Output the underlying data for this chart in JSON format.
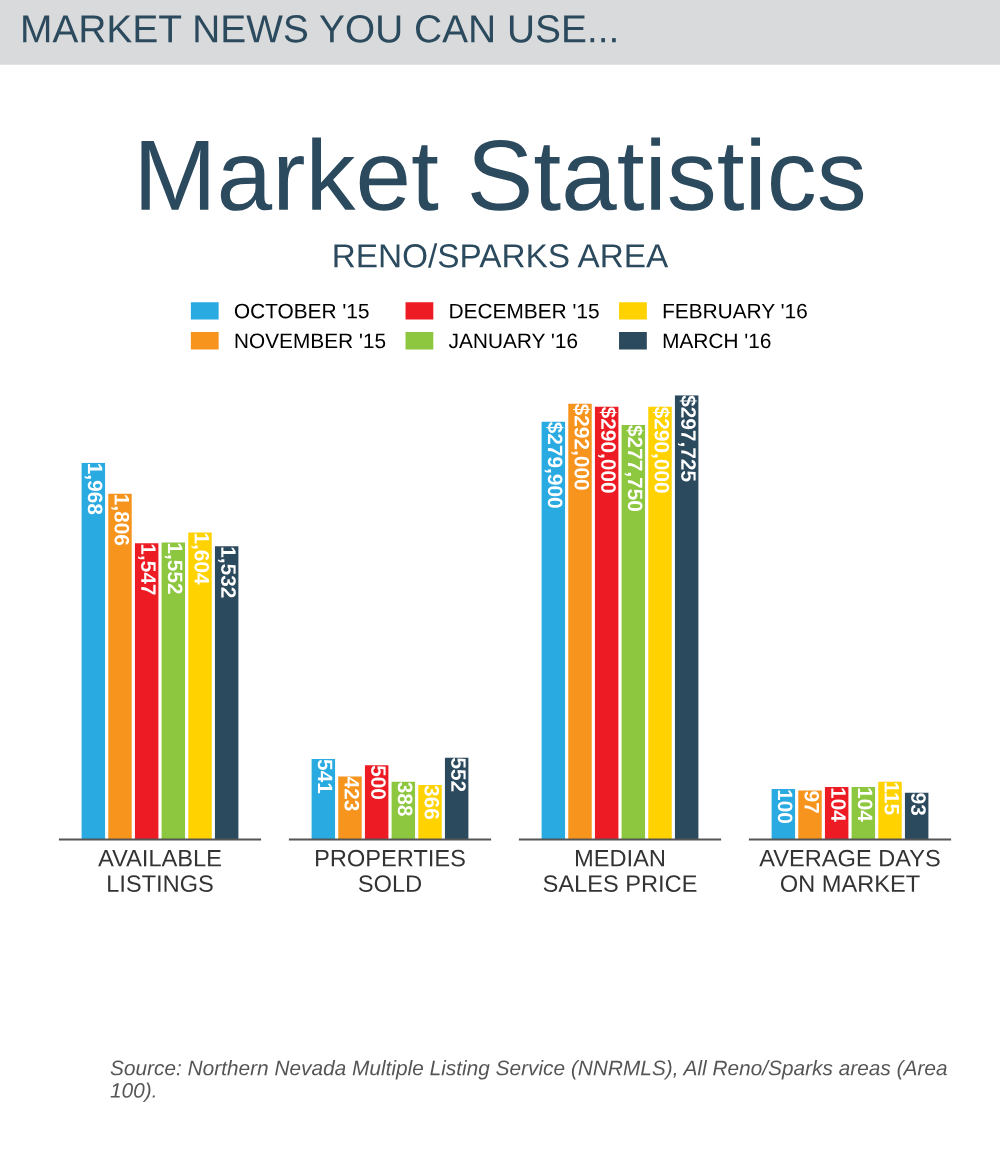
{
  "chart_data": [
    {
      "type": "other",
      "title": "Market Statistics",
      "subtitle": "RENO/SPARKS AREA",
      "annotations": [
        "MARKET NEWS YOU CAN USE...",
        "Source: Northern Nevada Multiple Listing Service (NNRMLS), All Reno/Sparks areas (Area 100)."
      ]
    },
    {
      "type": "bar",
      "legend": "top",
      "tick_labels": "x",
      "categories": [
        "AVAILABLE\nLISTINGS"
      ],
      "series": [
        {
          "name": "OCTOBER '15",
          "color": "#29abe2",
          "values": [
            1968
          ],
          "value_labels": [
            "1,968"
          ]
        },
        {
          "name": "NOVEMBER '15",
          "color": "#f7941d",
          "values": [
            1806
          ],
          "value_labels": [
            "1,806"
          ]
        },
        {
          "name": "DECEMBER '15",
          "color": "#ed1c24",
          "values": [
            1547
          ],
          "value_labels": [
            "1,547"
          ]
        },
        {
          "name": "JANUARY '16",
          "color": "#8dc63f",
          "values": [
            1552
          ],
          "value_labels": [
            "1,552"
          ]
        },
        {
          "name": "FEBRUARY '16",
          "color": "#ffd200",
          "values": [
            1604
          ],
          "value_labels": [
            "1,604"
          ]
        },
        {
          "name": "MARCH '16",
          "color": "#2c4a5e",
          "values": [
            1532
          ],
          "value_labels": [
            "1,532"
          ]
        }
      ]
    },
    {
      "type": "bar",
      "tick_labels": "x",
      "categories": [
        "PROPERTIES\nSOLD"
      ],
      "series": [
        {
          "color": "#29abe2",
          "values": [
            541
          ],
          "value_labels": [
            "541"
          ]
        },
        {
          "color": "#f7941d",
          "values": [
            423
          ],
          "value_labels": [
            "423"
          ]
        },
        {
          "color": "#ed1c24",
          "values": [
            500
          ],
          "value_labels": [
            "500"
          ]
        },
        {
          "color": "#8dc63f",
          "values": [
            388
          ],
          "value_labels": [
            "388"
          ]
        },
        {
          "color": "#ffd200",
          "values": [
            366
          ],
          "value_labels": [
            "366"
          ]
        },
        {
          "color": "#2c4a5e",
          "values": [
            552
          ],
          "value_labels": [
            "552"
          ]
        }
      ]
    },
    {
      "type": "bar",
      "tick_labels": "x",
      "categories": [
        "MEDIAN\nSALES PRICE"
      ],
      "series": [
        {
          "color": "#29abe2",
          "values": [
            279900
          ],
          "value_labels": [
            "$279,900"
          ]
        },
        {
          "color": "#f7941d",
          "values": [
            292000
          ],
          "value_labels": [
            "$292,000"
          ]
        },
        {
          "color": "#ed1c24",
          "values": [
            290000
          ],
          "value_labels": [
            "$290,000"
          ]
        },
        {
          "color": "#8dc63f",
          "values": [
            277750
          ],
          "value_labels": [
            "$277,750"
          ]
        },
        {
          "color": "#ffd200",
          "values": [
            290000
          ],
          "value_labels": [
            "$290,000"
          ]
        },
        {
          "color": "#2c4a5e",
          "values": [
            297725
          ],
          "value_labels": [
            "$297,725"
          ]
        }
      ]
    },
    {
      "type": "bar",
      "tick_labels": "x",
      "categories": [
        "AVERAGE DAYS\nON MARKET"
      ],
      "series": [
        {
          "color": "#29abe2",
          "values": [
            100
          ],
          "value_labels": [
            "100"
          ]
        },
        {
          "color": "#f7941d",
          "values": [
            97
          ],
          "value_labels": [
            "97"
          ]
        },
        {
          "color": "#ed1c24",
          "values": [
            104
          ],
          "value_labels": [
            "104"
          ]
        },
        {
          "color": "#8dc63f",
          "values": [
            104
          ],
          "value_labels": [
            "104"
          ]
        },
        {
          "color": "#ffd200",
          "values": [
            115
          ],
          "value_labels": [
            "115"
          ]
        },
        {
          "color": "#2c4a5e",
          "values": [
            93
          ],
          "value_labels": [
            "93"
          ]
        }
      ]
    }
  ]
}
